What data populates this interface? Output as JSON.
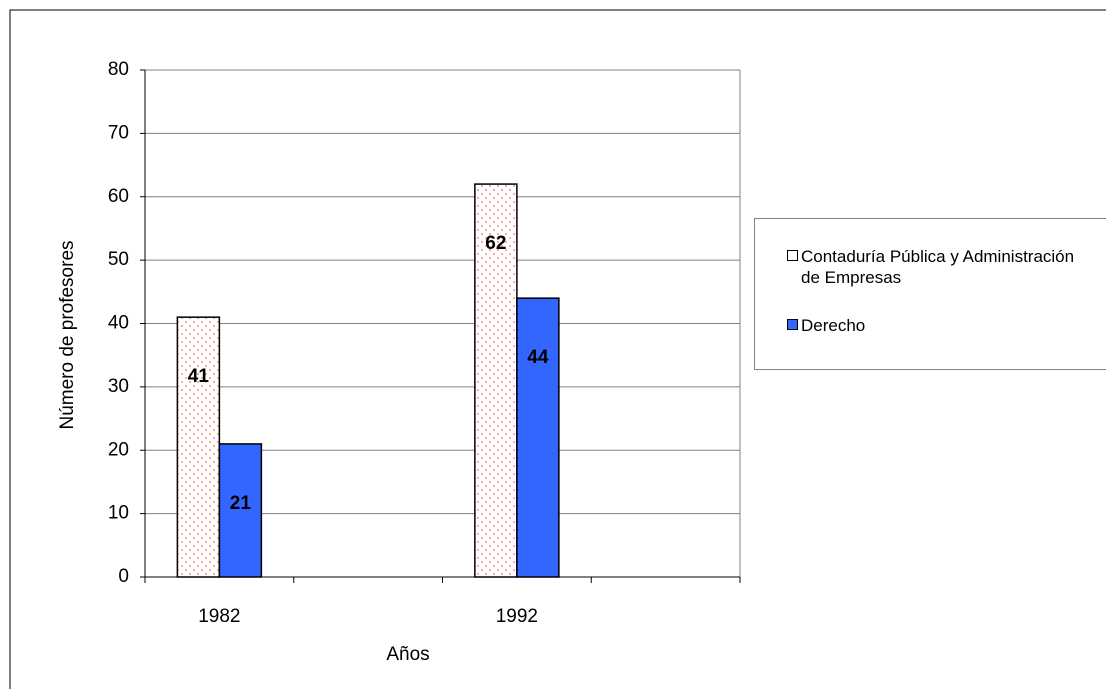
{
  "chart_data": {
    "type": "bar",
    "xlabel": "Años",
    "ylabel": "Número de profesores",
    "categories": [
      "1982",
      null,
      "1992",
      null
    ],
    "series": [
      {
        "name": "Contaduría Pública y Administración de Empresas",
        "color": "#ff6666",
        "pattern": "dots",
        "values": [
          41,
          null,
          62,
          null
        ]
      },
      {
        "name": "Derecho",
        "color": "#3366ff",
        "values": [
          21,
          null,
          44,
          null
        ]
      }
    ],
    "ylim": [
      0,
      80
    ],
    "yticks": [
      0,
      10,
      20,
      30,
      40,
      50,
      60,
      70,
      80
    ],
    "grid": true,
    "legend": "right"
  }
}
